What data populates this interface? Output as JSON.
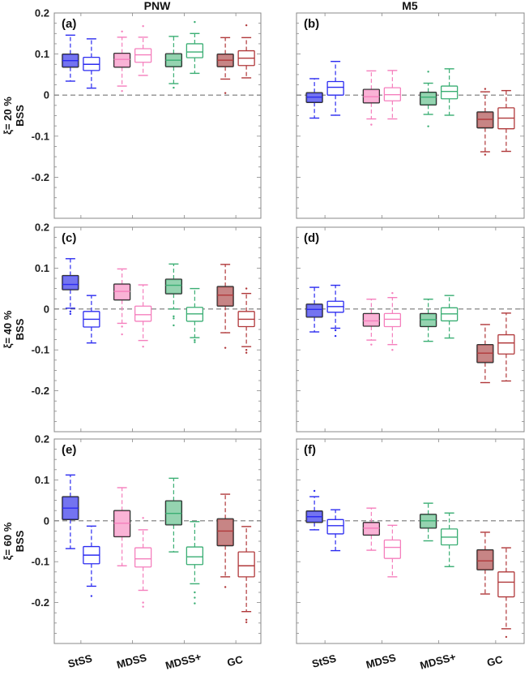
{
  "chart_data": {
    "type": "boxplot",
    "title": "",
    "columns": [
      "PNW",
      "M5"
    ],
    "row_labels": [
      "ξ= 20 %",
      "ξ= 40 %",
      "ξ= 60 %"
    ],
    "ylabel": "BSS",
    "ylim": [
      -0.3,
      0.2
    ],
    "yticks": [
      0.2,
      0.1,
      0,
      -0.1,
      -0.2
    ],
    "ytick_labels": [
      "0.2",
      "0.1",
      "0",
      "-0.1",
      "-0.2"
    ],
    "categories": [
      "StSS",
      "MDSS",
      "MDSS+",
      "GC"
    ],
    "series_colors": {
      "StSS": "#2b2bf0",
      "MDSS": "#f57fbd",
      "MDSS+": "#3aae73",
      "GC": "#b0383a"
    },
    "fill_colors": {
      "StSS": "#7474f0",
      "MDSS": "#f9b3d6",
      "MDSS+": "#95d3b0",
      "GC": "#c78585"
    },
    "variants": [
      "filled",
      "open"
    ],
    "reference_line": 0,
    "panels": [
      {
        "label": "(a)",
        "row": 0,
        "col": 0,
        "boxes": [
          {
            "cat": "StSS",
            "variant": "filled",
            "whislo": 0.034,
            "q1": 0.068,
            "med": 0.084,
            "q3": 0.1,
            "whishi": 0.146,
            "fliers": []
          },
          {
            "cat": "StSS",
            "variant": "open",
            "whislo": 0.017,
            "q1": 0.06,
            "med": 0.075,
            "q3": 0.092,
            "whishi": 0.137,
            "fliers": []
          },
          {
            "cat": "MDSS",
            "variant": "filled",
            "whislo": 0.022,
            "q1": 0.068,
            "med": 0.087,
            "q3": 0.102,
            "whishi": 0.141,
            "fliers": [
              0.01,
              0.155
            ]
          },
          {
            "cat": "MDSS",
            "variant": "open",
            "whislo": 0.048,
            "q1": 0.08,
            "med": 0.098,
            "q3": 0.113,
            "whishi": 0.141,
            "fliers": [
              0.168
            ]
          },
          {
            "cat": "MDSS+",
            "variant": "filled",
            "whislo": 0.028,
            "q1": 0.069,
            "med": 0.085,
            "q3": 0.101,
            "whishi": 0.143,
            "fliers": [
              0.018
            ]
          },
          {
            "cat": "MDSS+",
            "variant": "open",
            "whislo": 0.053,
            "q1": 0.091,
            "med": 0.105,
            "q3": 0.125,
            "whishi": 0.15,
            "fliers": [
              0.178
            ]
          },
          {
            "cat": "GC",
            "variant": "filled",
            "whislo": 0.039,
            "q1": 0.069,
            "med": 0.085,
            "q3": 0.1,
            "whishi": 0.14,
            "fliers": [
              0.005
            ]
          },
          {
            "cat": "GC",
            "variant": "open",
            "whislo": 0.042,
            "q1": 0.072,
            "med": 0.09,
            "q3": 0.108,
            "whishi": 0.14,
            "fliers": [
              0.17
            ]
          }
        ]
      },
      {
        "label": "(b)",
        "row": 0,
        "col": 1,
        "boxes": [
          {
            "cat": "StSS",
            "variant": "filled",
            "whislo": -0.056,
            "q1": -0.018,
            "med": -0.005,
            "q3": 0.006,
            "whishi": 0.04,
            "fliers": []
          },
          {
            "cat": "StSS",
            "variant": "open",
            "whislo": -0.049,
            "q1": 0.0,
            "med": 0.019,
            "q3": 0.033,
            "whishi": 0.082,
            "fliers": []
          },
          {
            "cat": "MDSS",
            "variant": "filled",
            "whislo": -0.058,
            "q1": -0.019,
            "med": -0.004,
            "q3": 0.014,
            "whishi": 0.059,
            "fliers": [
              -0.072
            ]
          },
          {
            "cat": "MDSS",
            "variant": "open",
            "whislo": -0.058,
            "q1": -0.014,
            "med": 0.001,
            "q3": 0.018,
            "whishi": 0.06,
            "fliers": []
          },
          {
            "cat": "MDSS+",
            "variant": "filled",
            "whislo": -0.047,
            "q1": -0.024,
            "med": -0.005,
            "q3": 0.007,
            "whishi": 0.029,
            "fliers": [
              -0.076,
              0.057
            ]
          },
          {
            "cat": "MDSS+",
            "variant": "open",
            "whislo": -0.049,
            "q1": -0.009,
            "med": 0.009,
            "q3": 0.022,
            "whishi": 0.064,
            "fliers": []
          },
          {
            "cat": "GC",
            "variant": "filled",
            "whislo": -0.138,
            "q1": -0.08,
            "med": -0.059,
            "q3": -0.041,
            "whishi": 0.008,
            "fliers": [
              -0.145,
              0.015
            ]
          },
          {
            "cat": "GC",
            "variant": "open",
            "whislo": -0.137,
            "q1": -0.082,
            "med": -0.056,
            "q3": -0.031,
            "whishi": 0.011,
            "fliers": []
          }
        ]
      },
      {
        "label": "(c)",
        "row": 1,
        "col": 0,
        "boxes": [
          {
            "cat": "StSS",
            "variant": "filled",
            "whislo": 0.002,
            "q1": 0.047,
            "med": 0.06,
            "q3": 0.082,
            "whishi": 0.123,
            "fliers": [
              -0.006,
              -0.012
            ]
          },
          {
            "cat": "StSS",
            "variant": "open",
            "whislo": -0.083,
            "q1": -0.044,
            "med": -0.025,
            "q3": -0.006,
            "whishi": 0.033,
            "fliers": []
          },
          {
            "cat": "MDSS",
            "variant": "filled",
            "whislo": -0.035,
            "q1": 0.022,
            "med": 0.043,
            "q3": 0.061,
            "whishi": 0.098,
            "fliers": [
              -0.043,
              -0.062
            ]
          },
          {
            "cat": "MDSS",
            "variant": "open",
            "whislo": -0.077,
            "q1": -0.03,
            "med": -0.014,
            "q3": 0.007,
            "whishi": 0.059,
            "fliers": [
              -0.092
            ]
          },
          {
            "cat": "MDSS+",
            "variant": "filled",
            "whislo": 0.0,
            "q1": 0.037,
            "med": 0.058,
            "q3": 0.073,
            "whishi": 0.11,
            "fliers": [
              -0.018,
              -0.023,
              -0.04
            ]
          },
          {
            "cat": "MDSS+",
            "variant": "open",
            "whislo": -0.07,
            "q1": -0.03,
            "med": -0.012,
            "q3": 0.004,
            "whishi": 0.05,
            "fliers": [
              -0.076,
              -0.081
            ]
          },
          {
            "cat": "GC",
            "variant": "filled",
            "whislo": -0.058,
            "q1": 0.007,
            "med": 0.034,
            "q3": 0.055,
            "whishi": 0.109,
            "fliers": [
              -0.095
            ]
          },
          {
            "cat": "GC",
            "variant": "open",
            "whislo": -0.092,
            "q1": -0.043,
            "med": -0.025,
            "q3": -0.006,
            "whishi": 0.038,
            "fliers": [
              -0.1,
              -0.107,
              0.05
            ]
          }
        ]
      },
      {
        "label": "(d)",
        "row": 1,
        "col": 1,
        "boxes": [
          {
            "cat": "StSS",
            "variant": "filled",
            "whislo": -0.056,
            "q1": -0.02,
            "med": -0.001,
            "q3": 0.012,
            "whishi": 0.053,
            "fliers": []
          },
          {
            "cat": "StSS",
            "variant": "open",
            "whislo": -0.047,
            "q1": -0.008,
            "med": 0.006,
            "q3": 0.019,
            "whishi": 0.058,
            "fliers": [
              -0.052,
              -0.066
            ]
          },
          {
            "cat": "MDSS",
            "variant": "filled",
            "whislo": -0.076,
            "q1": -0.042,
            "med": -0.029,
            "q3": -0.011,
            "whishi": 0.024,
            "fliers": [
              -0.087
            ]
          },
          {
            "cat": "MDSS",
            "variant": "open",
            "whislo": -0.087,
            "q1": -0.043,
            "med": -0.025,
            "q3": -0.011,
            "whishi": 0.028,
            "fliers": [
              -0.1,
              0.039
            ]
          },
          {
            "cat": "MDSS+",
            "variant": "filled",
            "whislo": -0.079,
            "q1": -0.043,
            "med": -0.026,
            "q3": -0.011,
            "whishi": 0.024,
            "fliers": []
          },
          {
            "cat": "MDSS+",
            "variant": "open",
            "whislo": -0.071,
            "q1": -0.029,
            "med": -0.012,
            "q3": 0.003,
            "whishi": 0.033,
            "fliers": []
          },
          {
            "cat": "GC",
            "variant": "filled",
            "whislo": -0.18,
            "q1": -0.131,
            "med": -0.108,
            "q3": -0.087,
            "whishi": -0.038,
            "fliers": []
          },
          {
            "cat": "GC",
            "variant": "open",
            "whislo": -0.176,
            "q1": -0.11,
            "med": -0.083,
            "q3": -0.063,
            "whishi": -0.01,
            "fliers": []
          }
        ]
      },
      {
        "label": "(e)",
        "row": 2,
        "col": 0,
        "boxes": [
          {
            "cat": "StSS",
            "variant": "filled",
            "whislo": -0.068,
            "q1": 0.003,
            "med": 0.031,
            "q3": 0.059,
            "whishi": 0.112,
            "fliers": []
          },
          {
            "cat": "StSS",
            "variant": "open",
            "whislo": -0.16,
            "q1": -0.105,
            "med": -0.084,
            "q3": -0.063,
            "whishi": -0.013,
            "fliers": [
              -0.184
            ]
          },
          {
            "cat": "MDSS",
            "variant": "filled",
            "whislo": -0.11,
            "q1": -0.039,
            "med": -0.006,
            "q3": 0.025,
            "whishi": 0.081,
            "fliers": []
          },
          {
            "cat": "MDSS",
            "variant": "open",
            "whislo": -0.17,
            "q1": -0.113,
            "med": -0.093,
            "q3": -0.066,
            "whishi": -0.022,
            "fliers": [
              -0.2,
              -0.21,
              0.007
            ]
          },
          {
            "cat": "MDSS+",
            "variant": "filled",
            "whislo": -0.076,
            "q1": -0.01,
            "med": 0.018,
            "q3": 0.049,
            "whishi": 0.104,
            "fliers": []
          },
          {
            "cat": "MDSS+",
            "variant": "open",
            "whislo": -0.154,
            "q1": -0.107,
            "med": -0.088,
            "q3": -0.064,
            "whishi": -0.002,
            "fliers": [
              -0.175,
              -0.188,
              -0.202
            ]
          },
          {
            "cat": "GC",
            "variant": "filled",
            "whislo": -0.137,
            "q1": -0.061,
            "med": -0.025,
            "q3": 0.005,
            "whishi": 0.065,
            "fliers": [
              -0.162
            ]
          },
          {
            "cat": "GC",
            "variant": "open",
            "whislo": -0.222,
            "q1": -0.137,
            "med": -0.11,
            "q3": -0.076,
            "whishi": -0.014,
            "fliers": [
              -0.242,
              -0.248
            ]
          }
        ]
      },
      {
        "label": "(f)",
        "row": 2,
        "col": 1,
        "boxes": [
          {
            "cat": "StSS",
            "variant": "filled",
            "whislo": -0.022,
            "q1": -0.004,
            "med": 0.01,
            "q3": 0.024,
            "whishi": 0.059,
            "fliers": [
              0.073
            ]
          },
          {
            "cat": "StSS",
            "variant": "open",
            "whislo": -0.073,
            "q1": -0.032,
            "med": -0.012,
            "q3": 0.003,
            "whishi": 0.027,
            "fliers": []
          },
          {
            "cat": "MDSS",
            "variant": "filled",
            "whislo": -0.072,
            "q1": -0.035,
            "med": -0.018,
            "q3": -0.004,
            "whishi": 0.031,
            "fliers": []
          },
          {
            "cat": "MDSS",
            "variant": "open",
            "whislo": -0.137,
            "q1": -0.092,
            "med": -0.065,
            "q3": -0.047,
            "whishi": -0.011,
            "fliers": []
          },
          {
            "cat": "MDSS+",
            "variant": "filled",
            "whislo": -0.049,
            "q1": -0.018,
            "med": 0.0,
            "q3": 0.016,
            "whishi": 0.043,
            "fliers": []
          },
          {
            "cat": "MDSS+",
            "variant": "open",
            "whislo": -0.112,
            "q1": -0.059,
            "med": -0.04,
            "q3": -0.02,
            "whishi": 0.019,
            "fliers": []
          },
          {
            "cat": "GC",
            "variant": "filled",
            "whislo": -0.179,
            "q1": -0.12,
            "med": -0.098,
            "q3": -0.071,
            "whishi": -0.028,
            "fliers": []
          },
          {
            "cat": "GC",
            "variant": "open",
            "whislo": -0.264,
            "q1": -0.186,
            "med": -0.15,
            "q3": -0.125,
            "whishi": -0.066,
            "fliers": [
              -0.284
            ]
          }
        ]
      }
    ]
  }
}
